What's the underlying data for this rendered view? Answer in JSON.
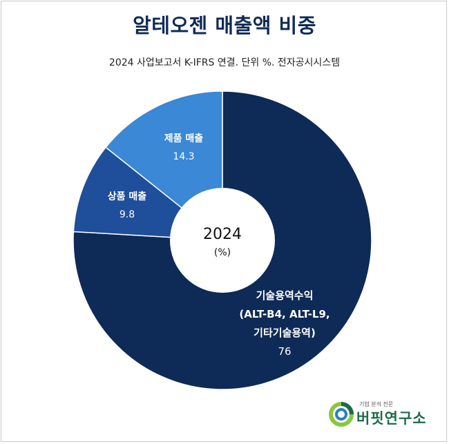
{
  "chart_data": {
    "type": "pie",
    "title": "알테오젠 매출액 비중",
    "subtitle": "2024 사업보고서 K-IFRS 연결. 단위 %. 전자공시시스템",
    "center_label": "2024",
    "center_unit": "(%)",
    "slices": [
      {
        "label_lines": [
          "기술용역수익",
          "(ALT-B4, ALT-L9,",
          "기타기술용역)"
        ],
        "value": 76,
        "value_label": "76",
        "color": "#0e2a56"
      },
      {
        "label_lines": [
          "상품 매출"
        ],
        "value": 9.8,
        "value_label": "9.8",
        "color": "#1f4e9b"
      },
      {
        "label_lines": [
          "제품 매출"
        ],
        "value": 14.3,
        "value_label": "14.3",
        "color": "#3a88d6"
      }
    ]
  },
  "logo": {
    "tagline": "기업 분석 전문",
    "name": "버핏연구소"
  }
}
